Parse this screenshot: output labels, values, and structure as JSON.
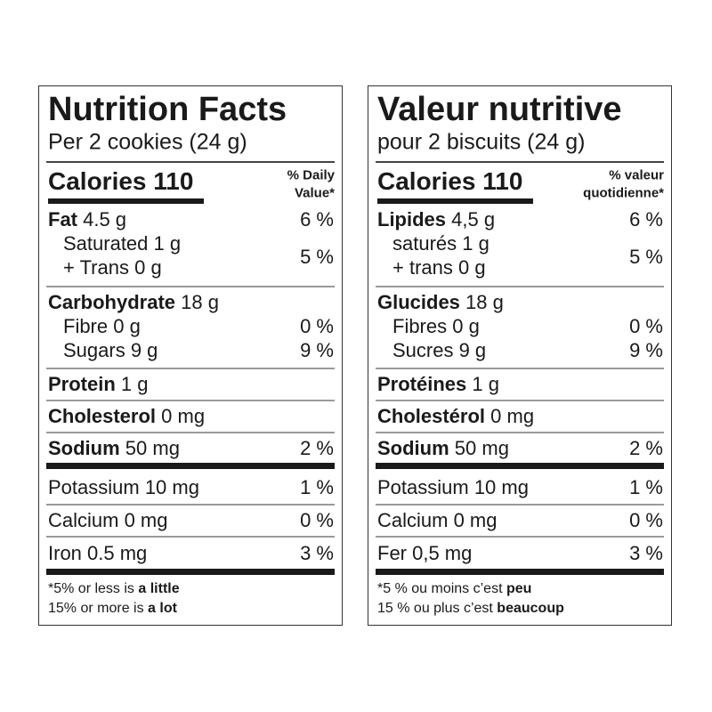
{
  "panels": [
    {
      "lang": "en",
      "title": "Nutrition Facts",
      "serving": "Per 2 cookies (24 g)",
      "calories": "Calories 110",
      "dv_header": [
        "% Daily",
        "Value*"
      ],
      "fat": {
        "bold": "Fat",
        "rest": " 4.5 g",
        "dv": "6 %"
      },
      "saturated": {
        "rest": "Saturated 1 g"
      },
      "trans": {
        "rest": "+ Trans 0 g"
      },
      "sat_trans_dv": "5 %",
      "carbohydrate": {
        "bold": "Carbohydrate",
        "rest": " 18 g"
      },
      "fibre": {
        "rest": "Fibre 0 g",
        "dv": "0 %"
      },
      "sugars": {
        "rest": "Sugars 9 g",
        "dv": "9 %"
      },
      "protein": {
        "bold": "Protein",
        "rest": " 1 g"
      },
      "cholesterol": {
        "bold": "Cholesterol",
        "rest": " 0 mg"
      },
      "sodium": {
        "bold": "Sodium",
        "rest": " 50 mg",
        "dv": "2 %"
      },
      "potassium": {
        "rest": "Potassium 10 mg",
        "dv": "1 %"
      },
      "calcium": {
        "rest": "Calcium 0 mg",
        "dv": "0 %"
      },
      "iron": {
        "rest": "Iron 0.5 mg",
        "dv": "3 %"
      },
      "footnote": [
        {
          "rest": "*5% or less is ",
          "bold": "a little"
        },
        {
          "rest": " 15% or more is ",
          "bold": "a lot"
        }
      ]
    },
    {
      "lang": "fr",
      "title": "Valeur nutritive",
      "serving": "pour 2 biscuits (24 g)",
      "calories": "Calories 110",
      "dv_header": [
        "% valeur",
        "quotidienne*"
      ],
      "fat": {
        "bold": "Lipides",
        "rest": " 4,5 g",
        "dv": "6 %"
      },
      "saturated": {
        "rest": "saturés 1 g"
      },
      "trans": {
        "rest": "+ trans 0 g"
      },
      "sat_trans_dv": "5 %",
      "carbohydrate": {
        "bold": "Glucides",
        "rest": " 18 g"
      },
      "fibre": {
        "rest": "Fibres 0 g",
        "dv": "0 %"
      },
      "sugars": {
        "rest": "Sucres 9 g",
        "dv": "9 %"
      },
      "protein": {
        "bold": "Protéines",
        "rest": " 1 g"
      },
      "cholesterol": {
        "bold": "Cholestérol",
        "rest": " 0 mg"
      },
      "sodium": {
        "bold": "Sodium",
        "rest": " 50 mg",
        "dv": "2 %"
      },
      "potassium": {
        "rest": "Potassium 10 mg",
        "dv": "1 %"
      },
      "calcium": {
        "rest": "Calcium 0 mg",
        "dv": "0 %"
      },
      "iron": {
        "rest": "Fer 0,5 mg",
        "dv": "3 %"
      },
      "footnote": [
        {
          "rest": "*5 % ou moins c’est ",
          "bold": "peu"
        },
        {
          "rest": " 15 % ou plus c’est ",
          "bold": "beaucoup"
        }
      ]
    }
  ]
}
